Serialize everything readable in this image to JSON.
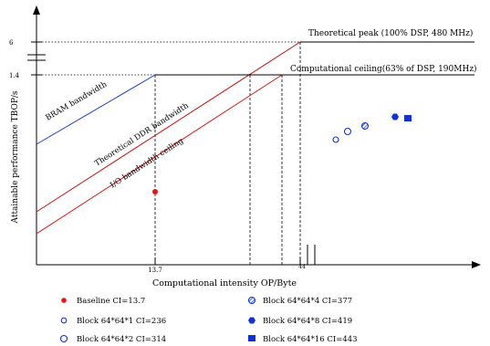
{
  "chart_data": {
    "type": "line",
    "title": "",
    "xlabel": "Computational intensity OP/Byte",
    "ylabel": "Attainable performance TBOP/s",
    "xticks": [
      "13.7",
      "44"
    ],
    "yticks": [
      "6",
      "1.4"
    ],
    "ceiling_labels": {
      "peak": "Theoretical peak (100% DSP, 480 MHz)",
      "dsp": "Computational ceiling(63% of DSP, 190MHz)",
      "bram": "BRAM bandwidth",
      "ddr": "Theoretical DDR bandwidth",
      "io": "I/O bandwidth ceiling"
    },
    "colors": {
      "bram": "#1a3fd0",
      "ddr": "#cc1010",
      "io": "#dd1515",
      "baseline": "#ee1111",
      "block": "#1030dd"
    },
    "series": [
      {
        "name": "Baseline CI=13.7",
        "ci": 13.7,
        "marker": "filled-circle",
        "color": "#ee1111"
      },
      {
        "name": "Block 64*64*1 CI=236",
        "ci": 236,
        "marker": "open-circle-small",
        "color": "#1030dd"
      },
      {
        "name": "Block 64*64*2 CI=314",
        "ci": 314,
        "marker": "open-circle",
        "color": "#1030dd"
      },
      {
        "name": "Block 64*64*4 CI=377",
        "ci": 377,
        "marker": "hatched-circle",
        "color": "#1030dd"
      },
      {
        "name": "Block 64*64*8 CI=419",
        "ci": 419,
        "marker": "filled-hexagon",
        "color": "#1030dd"
      },
      {
        "name": "Block 64*64*16 CI=443",
        "ci": 443,
        "marker": "filled-square",
        "color": "#1030dd"
      }
    ],
    "legend_placement": "bottom",
    "grid": false
  }
}
